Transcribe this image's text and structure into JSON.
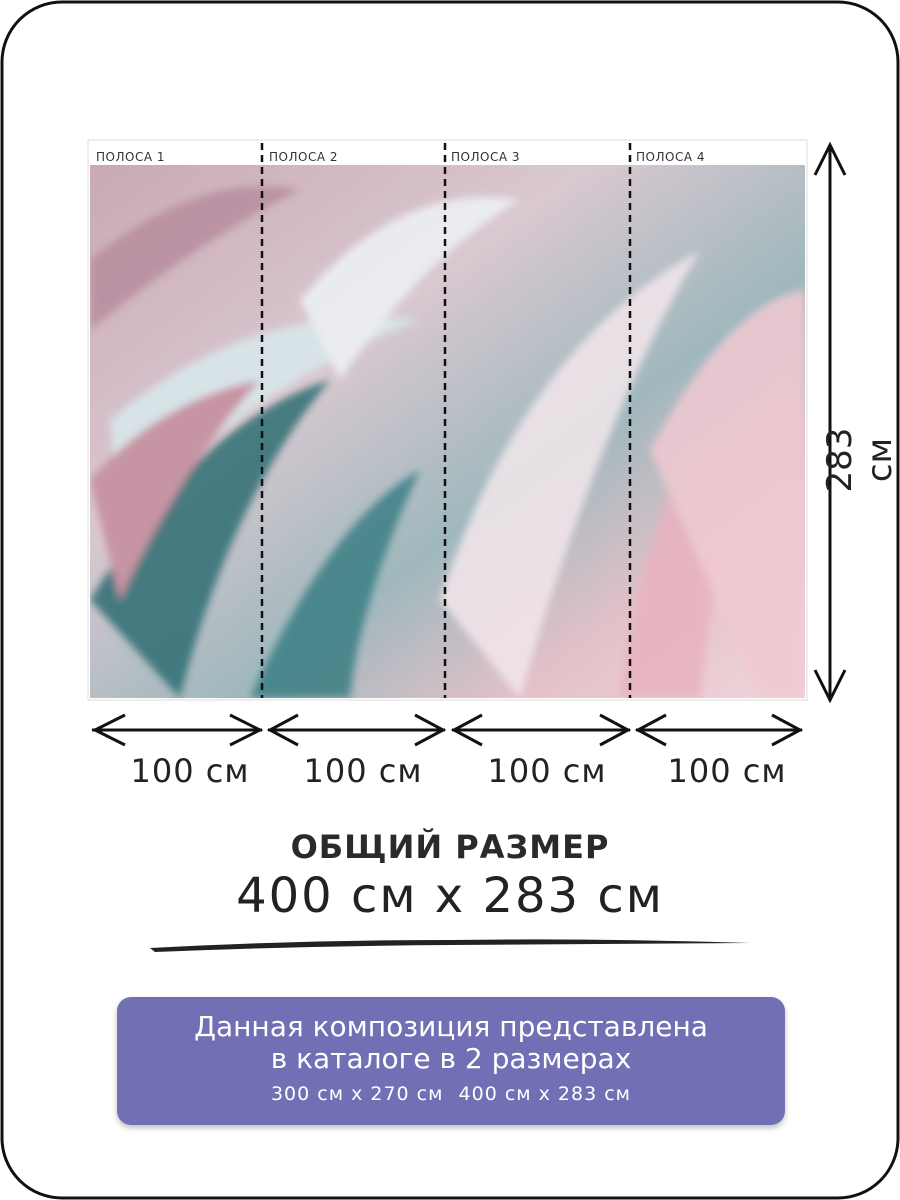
{
  "strips": [
    {
      "label": "ПОЛОСА 1",
      "width": "100 см"
    },
    {
      "label": "ПОЛОСА 2",
      "width": "100 см"
    },
    {
      "label": "ПОЛОСА 3",
      "width": "100 см"
    },
    {
      "label": "ПОЛОСА 4",
      "width": "100 см"
    }
  ],
  "height": "283 см",
  "total": {
    "title": "ОБЩИЙ РАЗМЕР",
    "size": "400 см x 283 см"
  },
  "banner": {
    "line1": "Данная композиция представлена",
    "line2": "в каталоге в 2 размерах",
    "sizes": [
      "300 см x 270 см",
      "400 см x 283 см"
    ]
  }
}
